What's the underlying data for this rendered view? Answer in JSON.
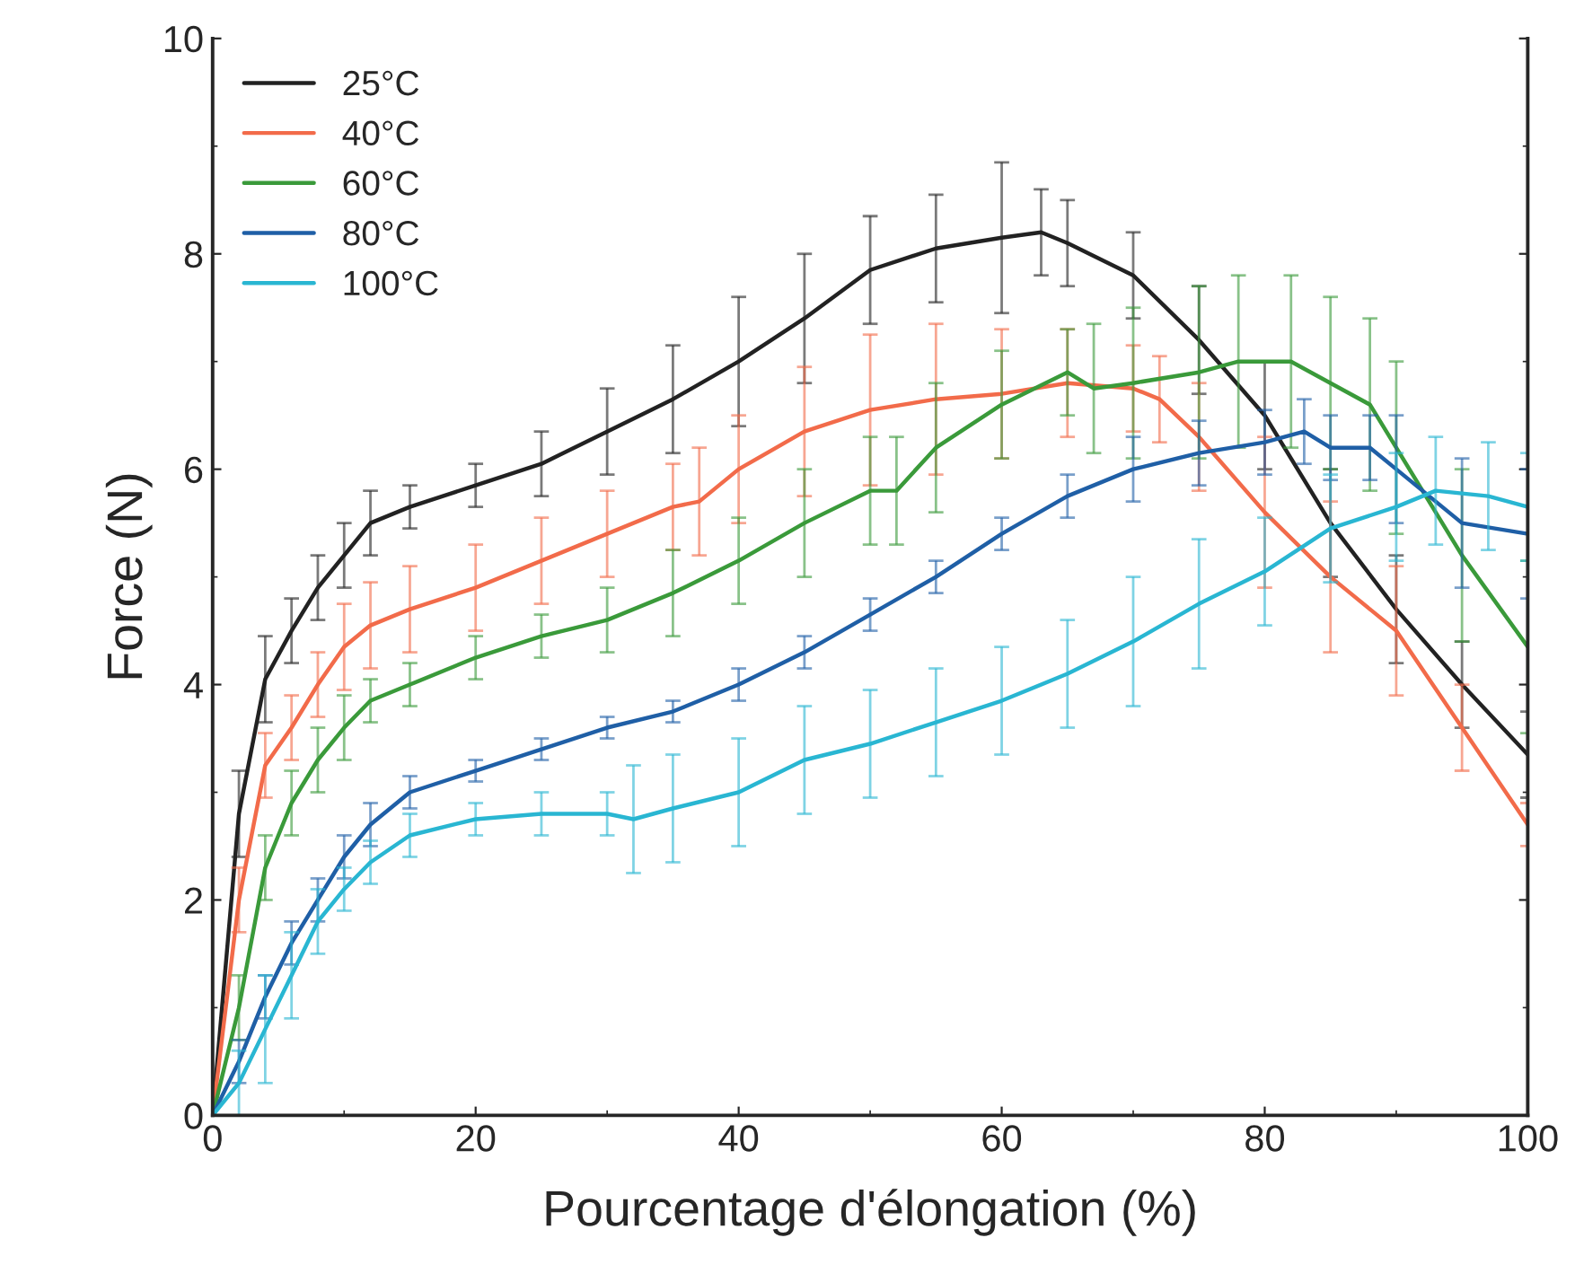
{
  "chart_data": {
    "type": "line",
    "xlabel": "Pourcentage d'élongation (%)",
    "ylabel": "Force (N)",
    "xlim": [
      0,
      100
    ],
    "ylim": [
      0,
      10
    ],
    "xticks": [
      0,
      20,
      40,
      60,
      80,
      100
    ],
    "yticks": [
      0,
      2,
      4,
      6,
      8,
      10
    ],
    "grid": false,
    "legend": "top left",
    "marker": "none",
    "line_style": "solid",
    "series": [
      {
        "name": "25°C",
        "color": "#222222",
        "x": [
          0,
          2,
          4,
          6,
          8,
          10,
          12,
          15,
          20,
          25,
          30,
          35,
          40,
          45,
          50,
          55,
          60,
          63,
          65,
          70,
          75,
          80,
          85,
          90,
          95,
          100
        ],
        "values": [
          0,
          2.8,
          4.05,
          4.5,
          4.9,
          5.2,
          5.5,
          5.65,
          5.85,
          6.05,
          6.35,
          6.65,
          7.0,
          7.4,
          7.85,
          8.05,
          8.15,
          8.2,
          8.1,
          7.8,
          7.2,
          6.5,
          5.5,
          4.7,
          4.0,
          3.35
        ],
        "errors": [
          0,
          0.4,
          0.4,
          0.3,
          0.3,
          0.3,
          0.3,
          0.2,
          0.2,
          0.3,
          0.4,
          0.5,
          0.6,
          0.6,
          0.5,
          0.5,
          0.7,
          0.4,
          0.4,
          0.4,
          0.5,
          0.5,
          0.5,
          0.5,
          0.4,
          0.4
        ]
      },
      {
        "name": "40°C",
        "color": "#f26b4a",
        "x": [
          0,
          2,
          4,
          6,
          8,
          10,
          12,
          15,
          20,
          25,
          30,
          35,
          37,
          40,
          45,
          50,
          55,
          60,
          65,
          70,
          72,
          75,
          80,
          85,
          90,
          95,
          100
        ],
        "values": [
          0,
          2.0,
          3.25,
          3.6,
          4.0,
          4.35,
          4.55,
          4.7,
          4.9,
          5.15,
          5.4,
          5.65,
          5.7,
          6.0,
          6.35,
          6.55,
          6.65,
          6.7,
          6.8,
          6.75,
          6.65,
          6.3,
          5.6,
          5.0,
          4.5,
          3.6,
          2.7
        ],
        "errors": [
          0,
          0.3,
          0.3,
          0.3,
          0.3,
          0.4,
          0.4,
          0.4,
          0.4,
          0.4,
          0.4,
          0.4,
          0.5,
          0.5,
          0.6,
          0.7,
          0.7,
          0.6,
          0.5,
          0.4,
          0.4,
          0.5,
          0.7,
          0.7,
          0.6,
          0.4,
          0.2
        ]
      },
      {
        "name": "60°C",
        "color": "#3a9a3a",
        "x": [
          0,
          2,
          4,
          6,
          8,
          10,
          12,
          15,
          20,
          25,
          30,
          35,
          40,
          45,
          50,
          52,
          55,
          60,
          65,
          67,
          70,
          75,
          78,
          82,
          85,
          88,
          90,
          95,
          100
        ],
        "values": [
          0,
          1.0,
          2.3,
          2.9,
          3.3,
          3.6,
          3.85,
          4.0,
          4.25,
          4.45,
          4.6,
          4.85,
          5.15,
          5.5,
          5.8,
          5.8,
          6.2,
          6.6,
          6.9,
          6.75,
          6.8,
          6.9,
          7.0,
          7.0,
          6.8,
          6.6,
          6.2,
          5.2,
          4.35
        ],
        "errors": [
          0,
          0.3,
          0.3,
          0.3,
          0.3,
          0.3,
          0.2,
          0.2,
          0.2,
          0.2,
          0.3,
          0.4,
          0.4,
          0.5,
          0.5,
          0.5,
          0.6,
          0.5,
          0.4,
          0.6,
          0.7,
          0.8,
          0.8,
          0.8,
          0.8,
          0.8,
          0.8,
          0.8,
          0.8
        ]
      },
      {
        "name": "80°C",
        "color": "#1f5fa6",
        "x": [
          0,
          2,
          4,
          6,
          8,
          10,
          12,
          15,
          20,
          25,
          30,
          35,
          40,
          45,
          50,
          55,
          60,
          65,
          70,
          75,
          80,
          83,
          85,
          88,
          90,
          95,
          100
        ],
        "values": [
          0,
          0.5,
          1.1,
          1.6,
          2.0,
          2.4,
          2.7,
          3.0,
          3.2,
          3.4,
          3.6,
          3.75,
          4.0,
          4.3,
          4.65,
          5.0,
          5.4,
          5.75,
          6.0,
          6.15,
          6.25,
          6.35,
          6.2,
          6.2,
          6.0,
          5.5,
          5.4
        ],
        "errors": [
          0,
          0.2,
          0.2,
          0.2,
          0.2,
          0.2,
          0.2,
          0.15,
          0.1,
          0.1,
          0.1,
          0.1,
          0.15,
          0.15,
          0.15,
          0.15,
          0.15,
          0.2,
          0.3,
          0.3,
          0.3,
          0.3,
          0.3,
          0.3,
          0.5,
          0.6,
          0.6
        ]
      },
      {
        "name": "100°C",
        "color": "#29b6d2",
        "x": [
          0,
          2,
          4,
          6,
          8,
          10,
          12,
          15,
          20,
          25,
          30,
          32,
          35,
          40,
          45,
          50,
          55,
          60,
          65,
          70,
          75,
          80,
          85,
          90,
          93,
          97,
          100
        ],
        "values": [
          0,
          0.3,
          0.8,
          1.3,
          1.8,
          2.1,
          2.35,
          2.6,
          2.75,
          2.8,
          2.8,
          2.75,
          2.85,
          3.0,
          3.3,
          3.45,
          3.65,
          3.85,
          4.1,
          4.4,
          4.75,
          5.05,
          5.45,
          5.65,
          5.8,
          5.75,
          5.65
        ],
        "errors": [
          0,
          0.3,
          0.5,
          0.4,
          0.3,
          0.2,
          0.2,
          0.2,
          0.15,
          0.2,
          0.2,
          0.5,
          0.5,
          0.5,
          0.5,
          0.5,
          0.5,
          0.5,
          0.5,
          0.6,
          0.6,
          0.5,
          0.5,
          0.5,
          0.5,
          0.5,
          0.5
        ]
      }
    ]
  }
}
